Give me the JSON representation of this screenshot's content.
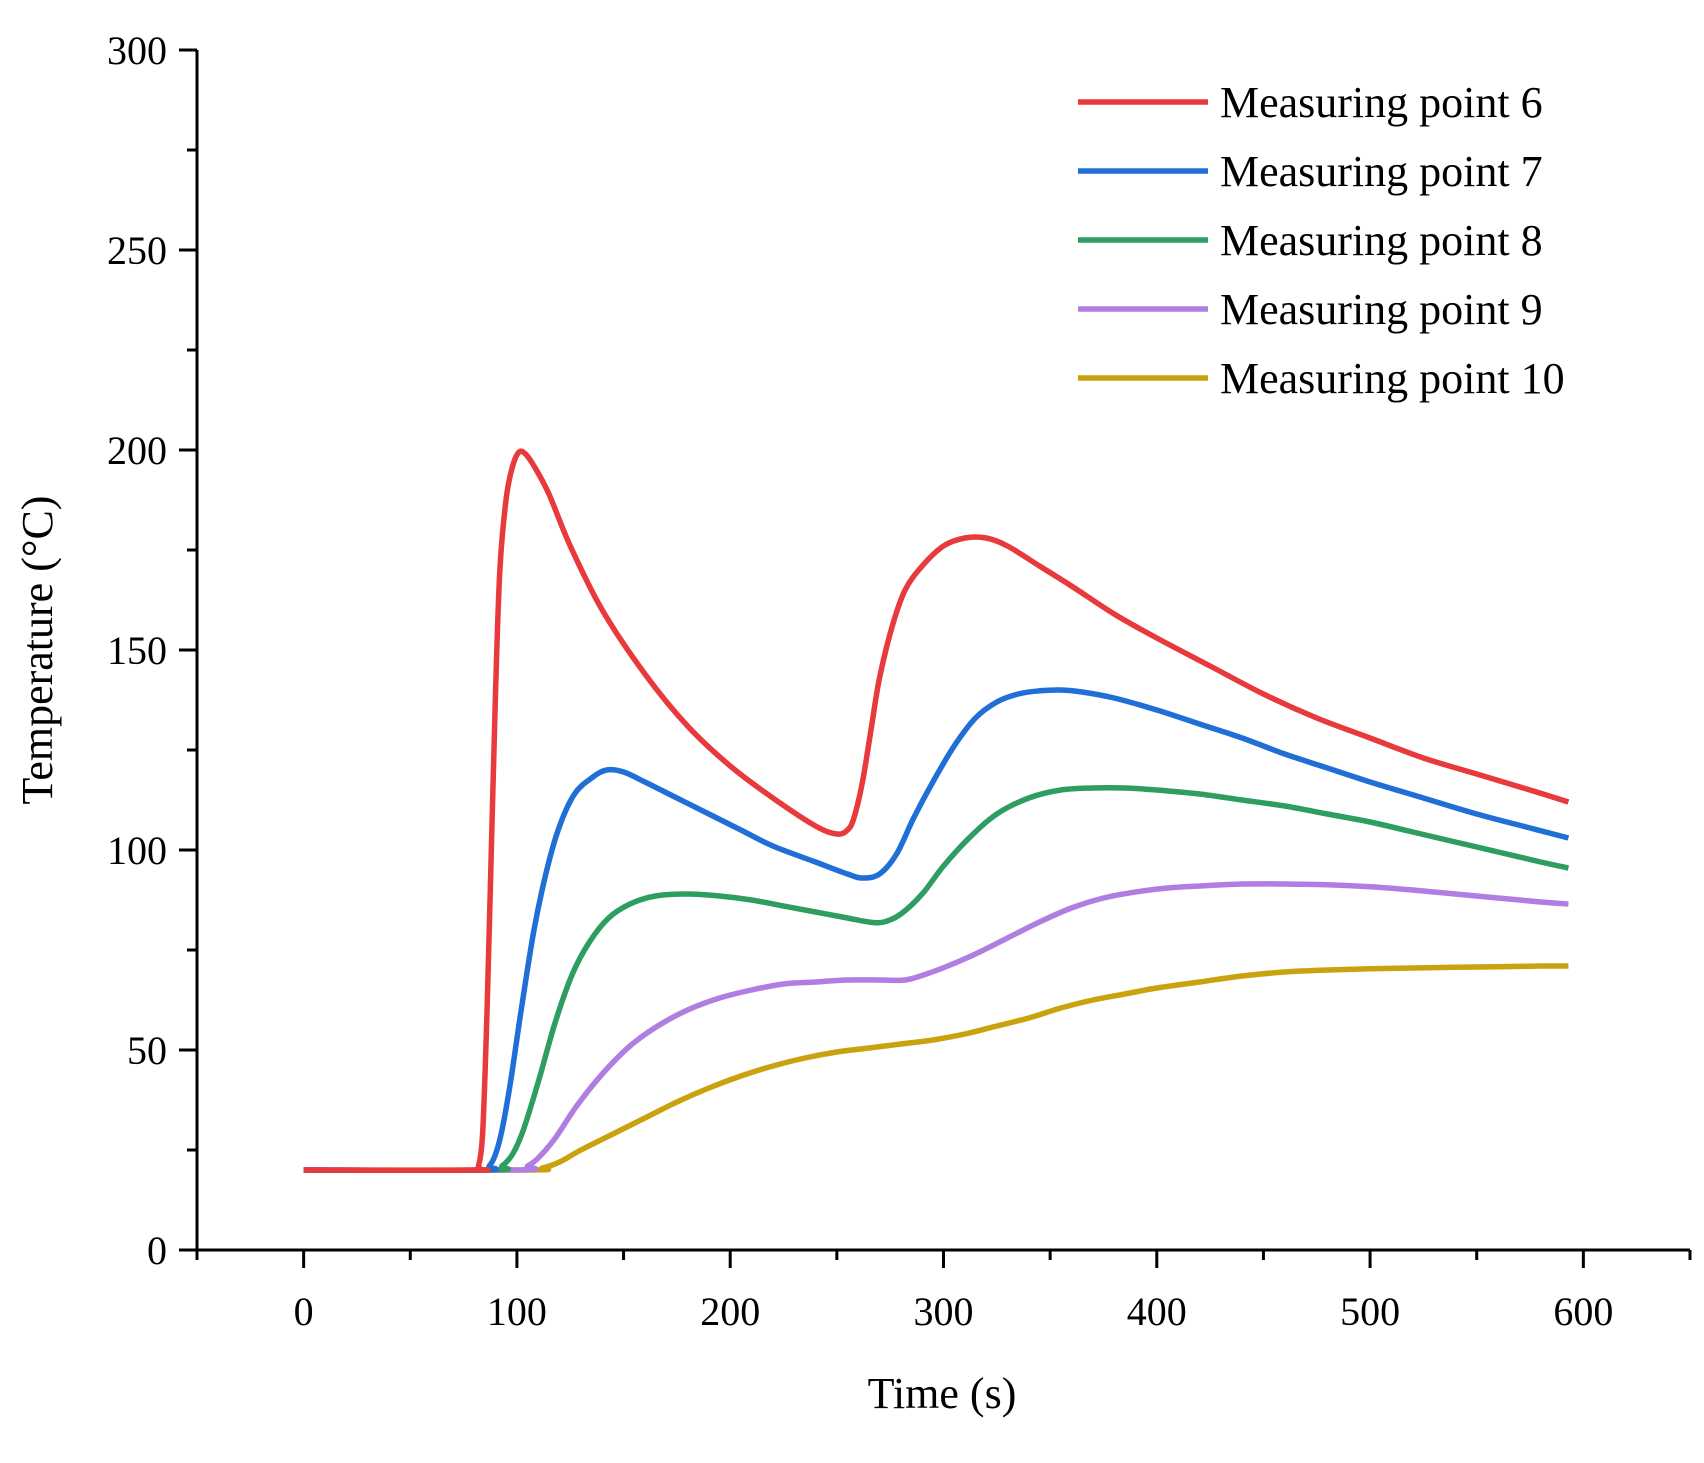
{
  "chart_data": {
    "type": "line",
    "title": "",
    "xlabel": "Time (s)",
    "ylabel": "Temperature (°C)",
    "xlim": [
      -50,
      650
    ],
    "ylim": [
      0,
      300
    ],
    "x_ticks": [
      0,
      100,
      200,
      300,
      400,
      500,
      600
    ],
    "x_tick_labels": [
      "0",
      "100",
      "200",
      "300",
      "400",
      "500",
      "600"
    ],
    "x_minor_ticks": [
      -50,
      50,
      150,
      250,
      350,
      450,
      550,
      650
    ],
    "y_ticks": [
      0,
      50,
      100,
      150,
      200,
      250,
      300
    ],
    "y_tick_labels": [
      "0",
      "50",
      "100",
      "150",
      "200",
      "250",
      "300"
    ],
    "y_minor_ticks": [
      25,
      75,
      125,
      175,
      225,
      275
    ],
    "grid": false,
    "legend_position": "top-right",
    "series": [
      {
        "name": "Measuring point 6",
        "color": "#e8393c",
        "points": [
          [
            0,
            20
          ],
          [
            80,
            20
          ],
          [
            82,
            21
          ],
          [
            84,
            30
          ],
          [
            86,
            60
          ],
          [
            88,
            100
          ],
          [
            90,
            140
          ],
          [
            92,
            170
          ],
          [
            95,
            188
          ],
          [
            98,
            196
          ],
          [
            101,
            199.5
          ],
          [
            104,
            199
          ],
          [
            108,
            196
          ],
          [
            115,
            189
          ],
          [
            125,
            176
          ],
          [
            140,
            160
          ],
          [
            160,
            144
          ],
          [
            180,
            131
          ],
          [
            200,
            121
          ],
          [
            220,
            113
          ],
          [
            240,
            106
          ],
          [
            250,
            104
          ],
          [
            255,
            105
          ],
          [
            258,
            108
          ],
          [
            262,
            117
          ],
          [
            266,
            130
          ],
          [
            270,
            143
          ],
          [
            276,
            156
          ],
          [
            282,
            165
          ],
          [
            290,
            171
          ],
          [
            300,
            176
          ],
          [
            310,
            178
          ],
          [
            320,
            178
          ],
          [
            330,
            176
          ],
          [
            345,
            171
          ],
          [
            360,
            166
          ],
          [
            380,
            159
          ],
          [
            400,
            153
          ],
          [
            425,
            146
          ],
          [
            450,
            139
          ],
          [
            475,
            133
          ],
          [
            500,
            128
          ],
          [
            525,
            123
          ],
          [
            550,
            119
          ],
          [
            575,
            115
          ],
          [
            593,
            112
          ]
        ]
      },
      {
        "name": "Measuring point 7",
        "color": "#1f6fd6",
        "points": [
          [
            0,
            20
          ],
          [
            83,
            20
          ],
          [
            87,
            21
          ],
          [
            90,
            24
          ],
          [
            93,
            30
          ],
          [
            97,
            42
          ],
          [
            102,
            60
          ],
          [
            108,
            80
          ],
          [
            114,
            95
          ],
          [
            120,
            106
          ],
          [
            127,
            114
          ],
          [
            135,
            118
          ],
          [
            142,
            120
          ],
          [
            150,
            119.5
          ],
          [
            160,
            117
          ],
          [
            175,
            113
          ],
          [
            190,
            109
          ],
          [
            205,
            105
          ],
          [
            220,
            101
          ],
          [
            240,
            97
          ],
          [
            255,
            94
          ],
          [
            262,
            93
          ],
          [
            270,
            94
          ],
          [
            278,
            99
          ],
          [
            286,
            108
          ],
          [
            295,
            117
          ],
          [
            305,
            126
          ],
          [
            315,
            133
          ],
          [
            325,
            137
          ],
          [
            335,
            139
          ],
          [
            345,
            139.8
          ],
          [
            355,
            140
          ],
          [
            365,
            139.5
          ],
          [
            380,
            138
          ],
          [
            400,
            135
          ],
          [
            420,
            131.5
          ],
          [
            440,
            128
          ],
          [
            460,
            124
          ],
          [
            480,
            120.5
          ],
          [
            500,
            117
          ],
          [
            525,
            113
          ],
          [
            550,
            109
          ],
          [
            575,
            105.5
          ],
          [
            593,
            103
          ]
        ]
      },
      {
        "name": "Measuring point 8",
        "color": "#2e9e60",
        "points": [
          [
            0,
            20
          ],
          [
            88,
            20
          ],
          [
            93,
            21
          ],
          [
            98,
            24
          ],
          [
            103,
            30
          ],
          [
            110,
            42
          ],
          [
            118,
            57
          ],
          [
            126,
            69
          ],
          [
            134,
            77
          ],
          [
            143,
            83
          ],
          [
            153,
            86.5
          ],
          [
            165,
            88.5
          ],
          [
            180,
            89
          ],
          [
            195,
            88.5
          ],
          [
            210,
            87.5
          ],
          [
            225,
            86
          ],
          [
            240,
            84.5
          ],
          [
            255,
            83
          ],
          [
            265,
            82
          ],
          [
            272,
            82
          ],
          [
            280,
            84
          ],
          [
            290,
            89
          ],
          [
            300,
            96
          ],
          [
            312,
            103
          ],
          [
            325,
            109
          ],
          [
            340,
            113
          ],
          [
            355,
            115
          ],
          [
            370,
            115.5
          ],
          [
            385,
            115.5
          ],
          [
            400,
            115
          ],
          [
            420,
            114
          ],
          [
            440,
            112.5
          ],
          [
            460,
            111
          ],
          [
            480,
            109
          ],
          [
            500,
            107
          ],
          [
            520,
            104.5
          ],
          [
            540,
            102
          ],
          [
            560,
            99.5
          ],
          [
            580,
            97
          ],
          [
            593,
            95.5
          ]
        ]
      },
      {
        "name": "Measuring point 9",
        "color": "#b07ee0",
        "points": [
          [
            0,
            20
          ],
          [
            100,
            20
          ],
          [
            105,
            21
          ],
          [
            110,
            23
          ],
          [
            118,
            28
          ],
          [
            128,
            36
          ],
          [
            140,
            44
          ],
          [
            153,
            51
          ],
          [
            166,
            56
          ],
          [
            180,
            60
          ],
          [
            195,
            63
          ],
          [
            210,
            65
          ],
          [
            225,
            66.5
          ],
          [
            240,
            67
          ],
          [
            255,
            67.5
          ],
          [
            270,
            67.5
          ],
          [
            282,
            67.5
          ],
          [
            292,
            69
          ],
          [
            302,
            71
          ],
          [
            315,
            74
          ],
          [
            330,
            78
          ],
          [
            345,
            82
          ],
          [
            360,
            85.5
          ],
          [
            375,
            88
          ],
          [
            390,
            89.5
          ],
          [
            405,
            90.5
          ],
          [
            420,
            91
          ],
          [
            440,
            91.5
          ],
          [
            460,
            91.5
          ],
          [
            480,
            91.3
          ],
          [
            500,
            90.8
          ],
          [
            520,
            90
          ],
          [
            540,
            89
          ],
          [
            560,
            88
          ],
          [
            580,
            87
          ],
          [
            593,
            86.5
          ]
        ]
      },
      {
        "name": "Measuring point 10",
        "color": "#c9a20d",
        "points": [
          [
            0,
            20
          ],
          [
            105,
            20
          ],
          [
            112,
            20.5
          ],
          [
            120,
            22
          ],
          [
            130,
            25
          ],
          [
            145,
            29
          ],
          [
            160,
            33
          ],
          [
            175,
            37
          ],
          [
            190,
            40.5
          ],
          [
            205,
            43.5
          ],
          [
            220,
            46
          ],
          [
            235,
            48
          ],
          [
            250,
            49.5
          ],
          [
            265,
            50.5
          ],
          [
            280,
            51.5
          ],
          [
            295,
            52.5
          ],
          [
            310,
            54
          ],
          [
            325,
            56
          ],
          [
            340,
            58
          ],
          [
            355,
            60.5
          ],
          [
            370,
            62.5
          ],
          [
            385,
            64
          ],
          [
            400,
            65.5
          ],
          [
            420,
            67
          ],
          [
            440,
            68.5
          ],
          [
            460,
            69.5
          ],
          [
            480,
            70
          ],
          [
            500,
            70.3
          ],
          [
            520,
            70.5
          ],
          [
            540,
            70.7
          ],
          [
            560,
            70.8
          ],
          [
            580,
            71
          ],
          [
            593,
            71
          ]
        ]
      }
    ]
  }
}
